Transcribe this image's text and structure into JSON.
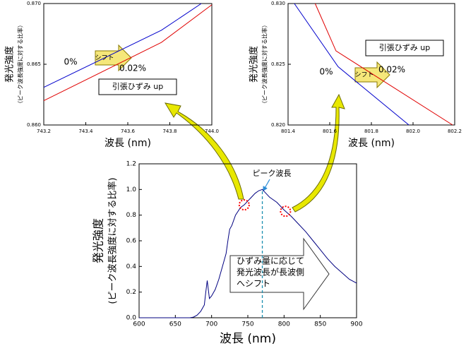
{
  "chart_data": [
    {
      "type": "line",
      "xlabel": "波長 (nm)",
      "ylabel": "発光強度",
      "ylabel_sub": "（ピーク波長強度に対する比率）",
      "xlim": [
        743.2,
        744.0
      ],
      "xticks": [
        743.2,
        743.4,
        743.6,
        743.8,
        {
          "value": 744.0,
          "label": "744.0"
        }
      ],
      "ylim": [
        0.86,
        0.87
      ],
      "yticks": [
        {
          "value": 0.86,
          "label": "0.860"
        },
        0.865,
        {
          "value": 0.87,
          "label": "0.870"
        }
      ],
      "series": [
        {
          "name": "0%",
          "color": "#0000cc",
          "x": [
            743.2,
            743.76,
            743.95
          ],
          "values": [
            0.8631,
            0.8678,
            0.87
          ]
        },
        {
          "name": "0.02%",
          "color": "#e00000",
          "x": [
            743.2,
            743.76,
            744.0
          ],
          "values": [
            0.862,
            0.8668,
            0.8699
          ]
        }
      ],
      "annotations": [
        "シフト",
        "引張ひずみ up"
      ]
    },
    {
      "type": "line",
      "xlabel": "波長 (nm)",
      "ylabel": "発光強度",
      "ylabel_sub": "（ピーク波長強度に対する比率）",
      "xlim": [
        801.4,
        802.2
      ],
      "xticks": [
        801.4,
        801.6,
        801.8,
        {
          "value": 802.0,
          "label": "802.0"
        },
        802.2
      ],
      "ylim": [
        0.82,
        0.83
      ],
      "yticks": [
        {
          "value": 0.82,
          "label": "0.820"
        },
        0.825,
        {
          "value": 0.83,
          "label": "0.830"
        }
      ],
      "series": [
        {
          "name": "0%",
          "color": "#0000cc",
          "x": [
            801.43,
            801.64,
            801.98
          ],
          "values": [
            0.83,
            0.8248,
            0.82
          ]
        },
        {
          "name": "0.02%",
          "color": "#e00000",
          "x": [
            801.53,
            801.63,
            802.19
          ],
          "values": [
            0.83,
            0.8261,
            0.82
          ]
        }
      ],
      "annotations": [
        "シフト",
        "引張ひずみ up"
      ]
    },
    {
      "type": "line",
      "xlabel": "波長 (nm)",
      "ylabel": "発光強度",
      "ylabel_sub": "(ピーク波長強度に対する比率)",
      "xlim": [
        600,
        900
      ],
      "xticks": [
        600,
        650,
        700,
        750,
        800,
        850,
        900
      ],
      "ylim": [
        0,
        1.2
      ],
      "yticks": [
        {
          "value": 0,
          "label": "0.0"
        },
        0.2,
        0.4,
        0.6,
        0.8,
        {
          "value": 1,
          "label": "1.0"
        },
        1.2
      ],
      "series": [
        {
          "name": "発光強度",
          "color": "#000080",
          "x": [
            600,
            670,
            675,
            680,
            685,
            690,
            692,
            694,
            697,
            700,
            705,
            710,
            715,
            720,
            723,
            725,
            728,
            733,
            740,
            745,
            750,
            755,
            760,
            765,
            770,
            775,
            780,
            790,
            800,
            810,
            820,
            830,
            840,
            850,
            860,
            870,
            880,
            890,
            900
          ],
          "values": [
            0,
            0,
            0.005,
            0.02,
            0.05,
            0.1,
            0.2,
            0.29,
            0.15,
            0.17,
            0.22,
            0.3,
            0.4,
            0.5,
            0.62,
            0.69,
            0.72,
            0.8,
            0.86,
            0.88,
            0.91,
            0.94,
            0.97,
            0.99,
            1.0,
            0.97,
            0.94,
            0.9,
            0.84,
            0.79,
            0.73,
            0.67,
            0.6,
            0.53,
            0.46,
            0.4,
            0.35,
            0.3,
            0.27
          ]
        }
      ],
      "peak_x": 770,
      "markers_x": [
        745,
        802
      ],
      "annotations": [
        "ピーク波長",
        "ひずみ量に応じて",
        "発光波長が長波側",
        "へシフト"
      ]
    }
  ]
}
